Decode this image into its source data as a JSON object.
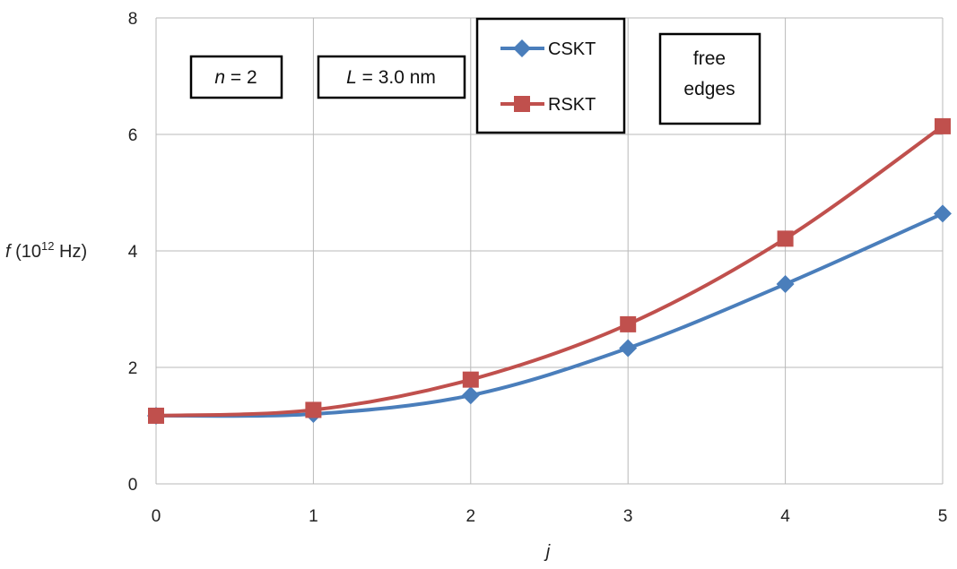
{
  "chart_data": {
    "type": "line",
    "x": [
      0,
      1,
      2,
      3,
      4,
      5
    ],
    "xlim": [
      0,
      5
    ],
    "ylim": [
      0,
      8
    ],
    "x_ticks": [
      "0",
      "1",
      "2",
      "3",
      "4",
      "5"
    ],
    "y_ticks": [
      "0",
      "2",
      "4",
      "6",
      "8"
    ],
    "xlabel": "j",
    "ylabel": {
      "var": "f",
      "open": " (10",
      "exp": "12",
      "unit": " Hz)"
    },
    "grid": true,
    "legend_position": "top-center",
    "series": [
      {
        "name": "CSKT",
        "color": "#4a7ebb",
        "marker": "diamond",
        "values": [
          1.17,
          1.2,
          1.52,
          2.33,
          3.43,
          4.64
        ]
      },
      {
        "name": "RSKT",
        "color": "#c0504d",
        "marker": "square",
        "values": [
          1.17,
          1.27,
          1.79,
          2.74,
          4.21,
          6.14
        ]
      }
    ],
    "annotations": {
      "n_label": {
        "var": "n",
        "rest": " = 2"
      },
      "L_label": {
        "var": "L",
        "rest": " = 3.0 nm"
      },
      "edges_label": {
        "line1": "free",
        "line2": "edges"
      }
    }
  }
}
